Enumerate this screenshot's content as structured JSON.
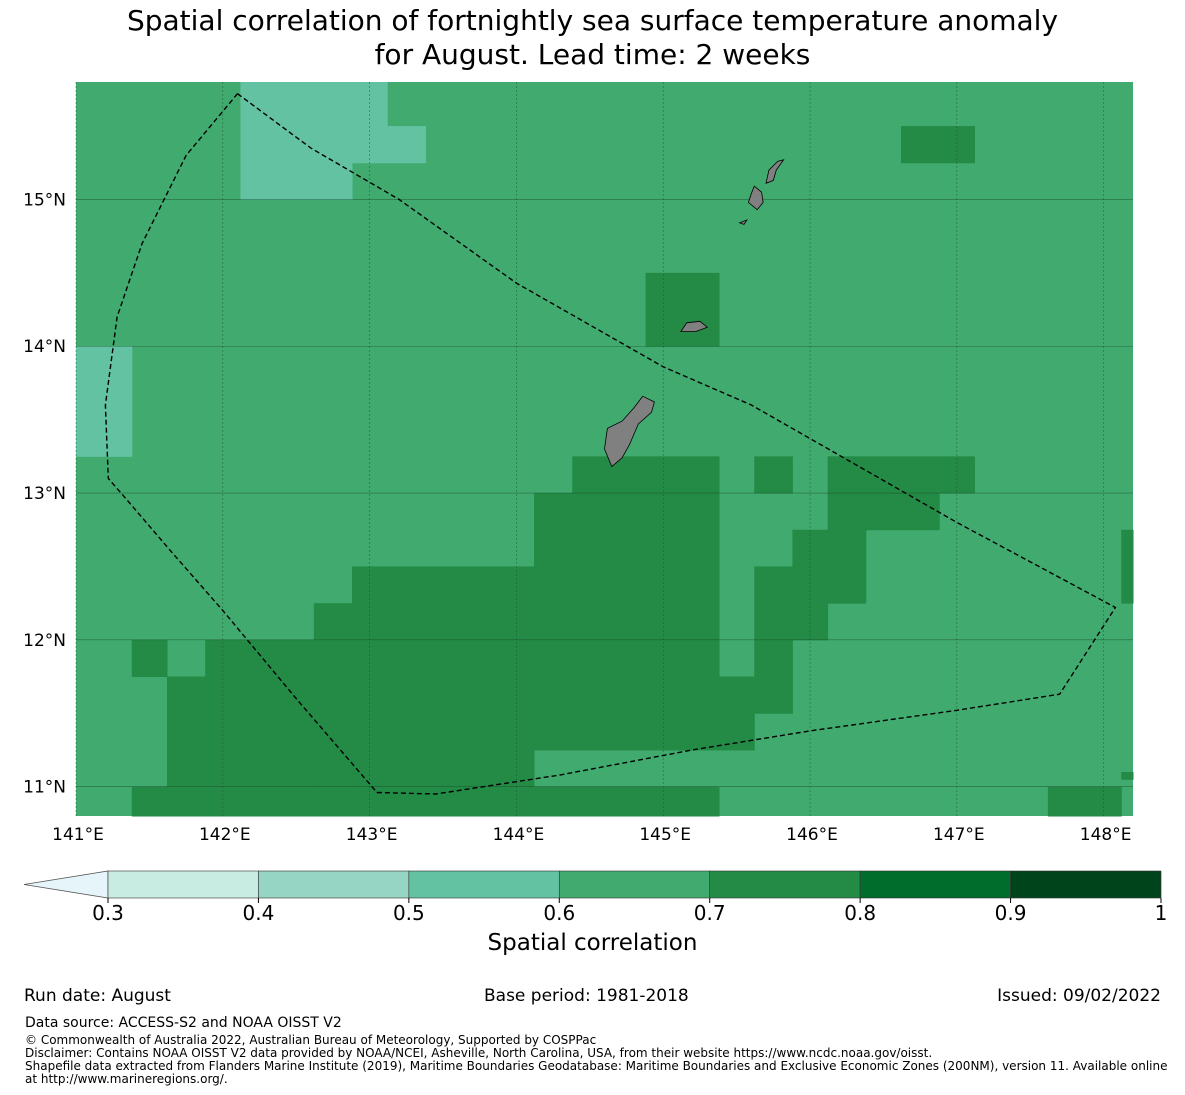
{
  "title": {
    "line1": "Spatial correlation of fortnightly sea surface temperature anomaly",
    "line2": "for August. Lead time: 2 weeks"
  },
  "map": {
    "lon_range": [
      141.0,
      148.2
    ],
    "lat_range": [
      10.8,
      15.8
    ],
    "x_ticks": [
      "141°E",
      "142°E",
      "143°E",
      "144°E",
      "145°E",
      "146°E",
      "147°E",
      "148°E"
    ],
    "y_ticks": [
      "15°N",
      "14°N",
      "13°N",
      "12°N",
      "11°N"
    ],
    "x_tick_values": [
      141,
      142,
      143,
      144,
      145,
      146,
      147,
      148
    ],
    "y_tick_values": [
      15,
      14,
      13,
      12,
      11
    ],
    "grid_cell_deg": 0.25,
    "base_correlation": 0.65,
    "colors": {
      "c45": "#62c2a2",
      "c65": "#41ab6f",
      "c75": "#238b45",
      "land": "#808080",
      "gridline": "#1a4d2e"
    },
    "correlation_patches": [
      {
        "lon": [
          142.12,
          142.88
        ],
        "lat": [
          15.0,
          15.8
        ],
        "value": 0.45
      },
      {
        "lon": [
          142.88,
          143.12
        ],
        "lat": [
          15.25,
          15.8
        ],
        "value": 0.45
      },
      {
        "lon": [
          143.12,
          143.38
        ],
        "lat": [
          15.25,
          15.5
        ],
        "value": 0.45
      },
      {
        "lon": [
          141.0,
          141.38
        ],
        "lat": [
          13.25,
          14.0
        ],
        "value": 0.45
      },
      {
        "lon": [
          141.62,
          141.88
        ],
        "lat": [
          11.75,
          12.0
        ],
        "value": 0.65
      },
      {
        "lon": [
          146.62,
          147.12
        ],
        "lat": [
          15.25,
          15.5
        ],
        "value": 0.75
      },
      {
        "lon": [
          144.88,
          145.38
        ],
        "lat": [
          14.0,
          14.5
        ],
        "value": 0.75
      },
      {
        "lon": [
          144.38,
          145.38
        ],
        "lat": [
          12.75,
          13.25
        ],
        "value": 0.75
      },
      {
        "lon": [
          145.62,
          145.88
        ],
        "lat": [
          13.0,
          13.25
        ],
        "value": 0.75
      },
      {
        "lon": [
          146.12,
          147.12
        ],
        "lat": [
          13.0,
          13.25
        ],
        "value": 0.75
      },
      {
        "lon": [
          146.12,
          146.88
        ],
        "lat": [
          12.75,
          13.0
        ],
        "value": 0.75
      },
      {
        "lon": [
          146.12,
          146.38
        ],
        "lat": [
          12.25,
          12.75
        ],
        "value": 0.75
      },
      {
        "lon": [
          145.88,
          146.12
        ],
        "lat": [
          12.0,
          12.75
        ],
        "value": 0.75
      },
      {
        "lon": [
          145.62,
          145.88
        ],
        "lat": [
          11.75,
          12.5
        ],
        "value": 0.75
      },
      {
        "lon": [
          144.12,
          145.38
        ],
        "lat": [
          11.25,
          13.0
        ],
        "value": 0.75
      },
      {
        "lon": [
          142.88,
          144.12
        ],
        "lat": [
          11.0,
          12.5
        ],
        "value": 0.75
      },
      {
        "lon": [
          142.62,
          142.88
        ],
        "lat": [
          11.0,
          12.25
        ],
        "value": 0.75
      },
      {
        "lon": [
          141.88,
          142.62
        ],
        "lat": [
          11.0,
          12.0
        ],
        "value": 0.75
      },
      {
        "lon": [
          141.62,
          141.88
        ],
        "lat": [
          11.0,
          11.75
        ],
        "value": 0.75
      },
      {
        "lon": [
          141.38,
          141.62
        ],
        "lat": [
          11.75,
          12.0
        ],
        "value": 0.75
      },
      {
        "lon": [
          145.38,
          145.62
        ],
        "lat": [
          11.25,
          11.5
        ],
        "value": 0.75
      },
      {
        "lon": [
          145.38,
          145.88
        ],
        "lat": [
          11.5,
          11.75
        ],
        "value": 0.75
      },
      {
        "lon": [
          141.38,
          145.38
        ],
        "lat": [
          10.8,
          11.0
        ],
        "value": 0.75
      },
      {
        "lon": [
          147.62,
          148.12
        ],
        "lat": [
          10.8,
          11.0
        ],
        "value": 0.75
      },
      {
        "lon": [
          148.12,
          148.2
        ],
        "lat": [
          12.25,
          12.75
        ],
        "value": 0.75
      },
      {
        "lon": [
          148.12,
          148.2
        ],
        "lat": [
          11.05,
          11.1
        ],
        "value": 0.75
      }
    ],
    "eez_boundary": [
      [
        142.1,
        15.72
      ],
      [
        142.6,
        15.35
      ],
      [
        143.2,
        15.0
      ],
      [
        144.0,
        14.43
      ],
      [
        145.0,
        13.86
      ],
      [
        145.6,
        13.6
      ],
      [
        146.3,
        13.2
      ],
      [
        147.0,
        12.8
      ],
      [
        148.08,
        12.22
      ],
      [
        147.7,
        11.63
      ],
      [
        147.0,
        11.52
      ],
      [
        146.0,
        11.38
      ],
      [
        145.2,
        11.25
      ],
      [
        144.3,
        11.08
      ],
      [
        143.45,
        10.95
      ],
      [
        143.05,
        10.96
      ],
      [
        142.5,
        11.6
      ],
      [
        142.0,
        12.2
      ],
      [
        141.65,
        12.6
      ],
      [
        141.35,
        12.95
      ],
      [
        141.22,
        13.1
      ],
      [
        141.2,
        13.6
      ],
      [
        141.28,
        14.2
      ],
      [
        141.45,
        14.7
      ],
      [
        141.75,
        15.3
      ],
      [
        142.1,
        15.72
      ]
    ],
    "islands": [
      [
        [
          144.65,
          13.18
        ],
        [
          144.6,
          13.3
        ],
        [
          144.62,
          13.44
        ],
        [
          144.72,
          13.49
        ],
        [
          144.8,
          13.58
        ],
        [
          144.86,
          13.66
        ],
        [
          144.94,
          13.62
        ],
        [
          144.92,
          13.55
        ],
        [
          144.83,
          13.47
        ],
        [
          144.77,
          13.33
        ],
        [
          144.72,
          13.24
        ]
      ],
      [
        [
          145.12,
          14.1
        ],
        [
          145.16,
          14.16
        ],
        [
          145.25,
          14.17
        ],
        [
          145.3,
          14.13
        ],
        [
          145.22,
          14.1
        ]
      ],
      [
        [
          145.58,
          14.98
        ],
        [
          145.6,
          15.04
        ],
        [
          145.62,
          15.09
        ],
        [
          145.67,
          15.05
        ],
        [
          145.68,
          14.98
        ],
        [
          145.64,
          14.93
        ]
      ],
      [
        [
          145.7,
          15.11
        ],
        [
          145.72,
          15.2
        ],
        [
          145.78,
          15.26
        ],
        [
          145.82,
          15.27
        ],
        [
          145.77,
          15.2
        ],
        [
          145.75,
          15.13
        ]
      ],
      [
        [
          145.52,
          14.84
        ],
        [
          145.57,
          14.86
        ],
        [
          145.55,
          14.83
        ]
      ]
    ]
  },
  "colorbar": {
    "label": "Spatial correlation",
    "ticks": [
      "0.3",
      "0.4",
      "0.5",
      "0.6",
      "0.7",
      "0.8",
      "0.9",
      "1"
    ],
    "tick_values": [
      0.3,
      0.4,
      0.5,
      0.6,
      0.7,
      0.8,
      0.9,
      1.0
    ],
    "bin_colors": [
      "#c9ece2",
      "#96d5c4",
      "#62c2a2",
      "#41ab6f",
      "#238b45",
      "#006d2c",
      "#00441b"
    ],
    "extend_color": "#e5f5f9"
  },
  "footer": {
    "run_date": "Run date: August",
    "base_period": "Base period: 1981-2018",
    "issued": "Issued: 09/02/2022",
    "data_source": "Data source: ACCESS-S2 and NOAA OISST V2",
    "copyright": "© Commonwealth of Australia 2022, Australian Bureau of Meteorology, Supported by COSPPac",
    "disclaimer": "Disclaimer: Contains NOAA OISST V2 data provided by NOAA/NCEI, Asheville, North Carolina, USA, from their website https://www.ncdc.noaa.gov/oisst.",
    "shapefile": "Shapefile data extracted from Flanders Marine Institute (2019), Maritime Boundaries Geodatabase: Maritime Boundaries and Exclusive Economic Zones (200NM), version 11. Available online at http://www.marineregions.org/."
  }
}
